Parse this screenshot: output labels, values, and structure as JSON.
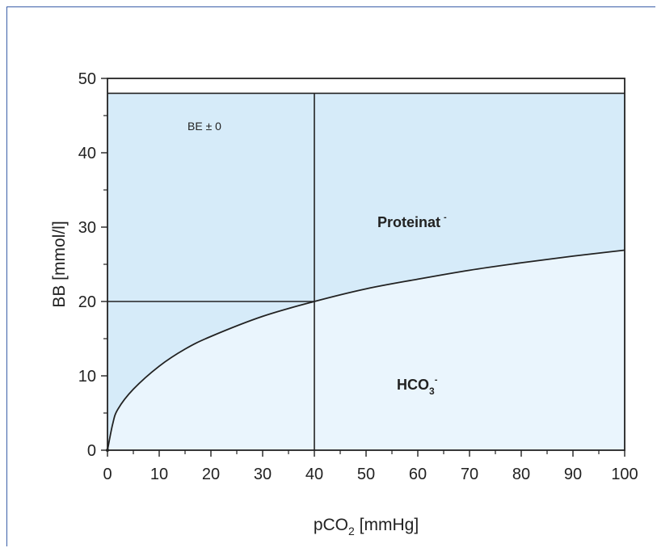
{
  "chart_data": {
    "type": "area",
    "xlabel_main": "pCO",
    "xlabel_sub": "2",
    "xlabel_unit": " [mmHg]",
    "ylabel": "BB  [mmol/l]",
    "xlim": [
      0,
      100
    ],
    "ylim": [
      0,
      50
    ],
    "x_ticks": [
      0,
      10,
      20,
      30,
      40,
      50,
      60,
      70,
      80,
      90,
      100
    ],
    "y_ticks": [
      0,
      10,
      20,
      30,
      40,
      50
    ],
    "bb_level": 48,
    "reference_point": {
      "x": 40,
      "y": 20
    },
    "series": [
      {
        "values_x": [
          0,
          1,
          2,
          5,
          10,
          15,
          20,
          30,
          40,
          50,
          60,
          70,
          80,
          90,
          100
        ],
        "values_y": [
          0,
          3.5,
          5.5,
          8.2,
          11.3,
          13.6,
          15.3,
          18.0,
          20.0,
          21.7,
          23.0,
          24.2,
          25.2,
          26.1,
          26.9
        ]
      }
    ],
    "annotations": {
      "be_label": "BE ± 0",
      "upper_region": "Proteinat",
      "upper_region_sup": "-",
      "lower_region_main": "HCO",
      "lower_region_sub": "3",
      "lower_region_sup": "-"
    },
    "colors": {
      "upper_fill": "#d6ebf9",
      "lower_fill": "#eaf5fd",
      "axis": "#222222",
      "frame": "#3b5fa8"
    }
  }
}
